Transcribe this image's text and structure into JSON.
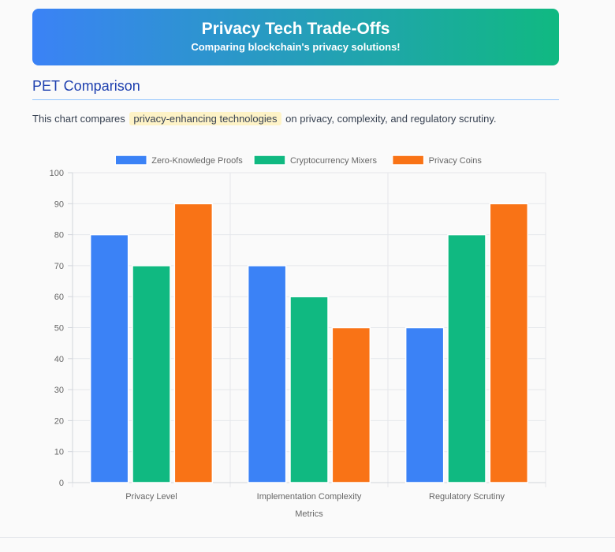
{
  "header": {
    "title": "Privacy Tech Trade-Offs",
    "subtitle": "Comparing blockchain's privacy solutions!"
  },
  "section": {
    "title": "PET Comparison",
    "intro_before": "This chart compares",
    "intro_highlight": "privacy-enhancing technologies",
    "intro_after": "on privacy, complexity, and regulatory scrutiny."
  },
  "colors": {
    "zkp": "#3b82f6",
    "mixers": "#10b981",
    "coins": "#f97316"
  },
  "chart_data": {
    "type": "bar",
    "categories": [
      "Privacy Level",
      "Implementation Complexity",
      "Regulatory Scrutiny"
    ],
    "series": [
      {
        "name": "Zero-Knowledge Proofs",
        "values": [
          80,
          70,
          50
        ],
        "color": "#3b82f6"
      },
      {
        "name": "Cryptocurrency Mixers",
        "values": [
          70,
          60,
          80
        ],
        "color": "#10b981"
      },
      {
        "name": "Privacy Coins",
        "values": [
          90,
          50,
          90
        ],
        "color": "#f97316"
      }
    ],
    "xlabel": "Metrics",
    "ylabel": "",
    "ylim": [
      0,
      100
    ],
    "yticks": [
      0,
      10,
      20,
      30,
      40,
      50,
      60,
      70,
      80,
      90,
      100
    ],
    "grid": true,
    "legend": "top-center"
  }
}
